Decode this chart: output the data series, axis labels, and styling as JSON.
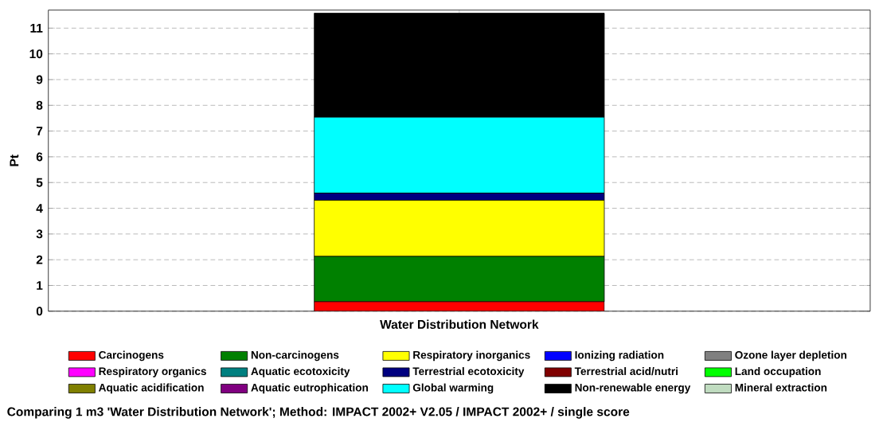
{
  "chart_data": {
    "type": "bar",
    "stacked": true,
    "ylabel": "Pt",
    "categories": [
      "Water Distribution Network"
    ],
    "ylim": [
      0,
      11.7
    ],
    "yticks": [
      0,
      1,
      2,
      3,
      4,
      5,
      6,
      7,
      8,
      9,
      10,
      11
    ],
    "grid": "y",
    "legend": "bottom",
    "series": [
      {
        "name": "Carcinogens",
        "color": "#ff0000",
        "values": [
          0.37
        ]
      },
      {
        "name": "Non-carcinogens",
        "color": "#008000",
        "values": [
          1.76
        ]
      },
      {
        "name": "Respiratory inorganics",
        "color": "#ffff00",
        "values": [
          2.18
        ]
      },
      {
        "name": "Ionizing radiation",
        "color": "#0000ff",
        "values": [
          0
        ]
      },
      {
        "name": "Ozone layer depletion",
        "color": "#808080",
        "values": [
          0
        ]
      },
      {
        "name": "Respiratory organics",
        "color": "#ff00ff",
        "values": [
          0
        ]
      },
      {
        "name": "Aquatic ecotoxicity",
        "color": "#008080",
        "values": [
          0
        ]
      },
      {
        "name": "Terrestrial ecotoxicity",
        "color": "#000080",
        "values": [
          0.28
        ]
      },
      {
        "name": "Terrestrial acid/nutri",
        "color": "#800000",
        "values": [
          0
        ]
      },
      {
        "name": "Land occupation",
        "color": "#00ff00",
        "values": [
          0
        ]
      },
      {
        "name": "Aquatic acidification",
        "color": "#808000",
        "values": [
          0
        ]
      },
      {
        "name": "Aquatic eutrophication",
        "color": "#800080",
        "values": [
          0
        ]
      },
      {
        "name": "Global warming",
        "color": "#00ffff",
        "values": [
          2.95
        ]
      },
      {
        "name": "Non-renewable energy",
        "color": "#000000",
        "values": [
          4.04
        ]
      },
      {
        "name": "Mineral extraction",
        "color": "#c0dcc0",
        "values": [
          0
        ]
      }
    ],
    "annotations": [
      "Comparing 1 m3 'Water Distribution Network';  Method: IMPACT 2002+ V2.05 /  IMPACT 2002+ / single score"
    ]
  }
}
